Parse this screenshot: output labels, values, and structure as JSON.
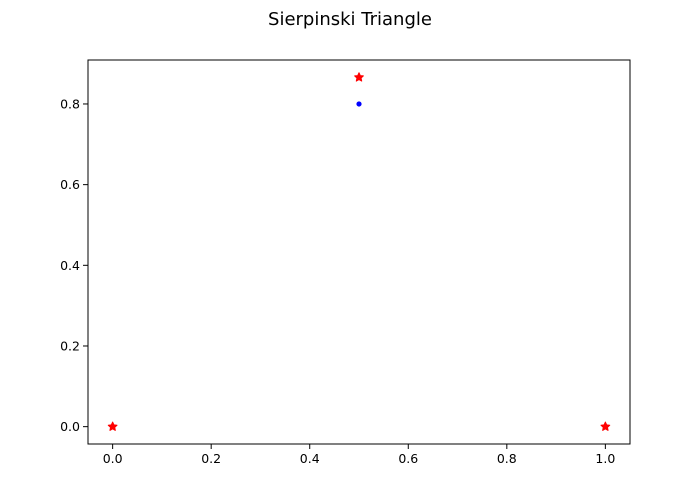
{
  "chart_data": {
    "type": "scatter",
    "title": "Sierpinski Triangle",
    "xlabel": "",
    "ylabel": "",
    "xlim": [
      -0.05,
      1.05
    ],
    "ylim": [
      -0.043,
      0.909
    ],
    "xticks": [
      0.0,
      0.2,
      0.4,
      0.6,
      0.8,
      1.0
    ],
    "xtick_labels": [
      "0.0",
      "0.2",
      "0.4",
      "0.6",
      "0.8",
      "1.0"
    ],
    "yticks": [
      0.0,
      0.2,
      0.4,
      0.6,
      0.8
    ],
    "ytick_labels": [
      "0.0",
      "0.2",
      "0.4",
      "0.6",
      "0.8"
    ],
    "grid": false,
    "series": [
      {
        "marker": "star",
        "color": "#ff0000",
        "x": [
          0.0,
          0.5,
          1.0
        ],
        "y": [
          0.0,
          0.866,
          0.0
        ]
      },
      {
        "marker": "dot",
        "color": "#0000ff",
        "x": [
          0.5
        ],
        "y": [
          0.8
        ]
      }
    ]
  }
}
